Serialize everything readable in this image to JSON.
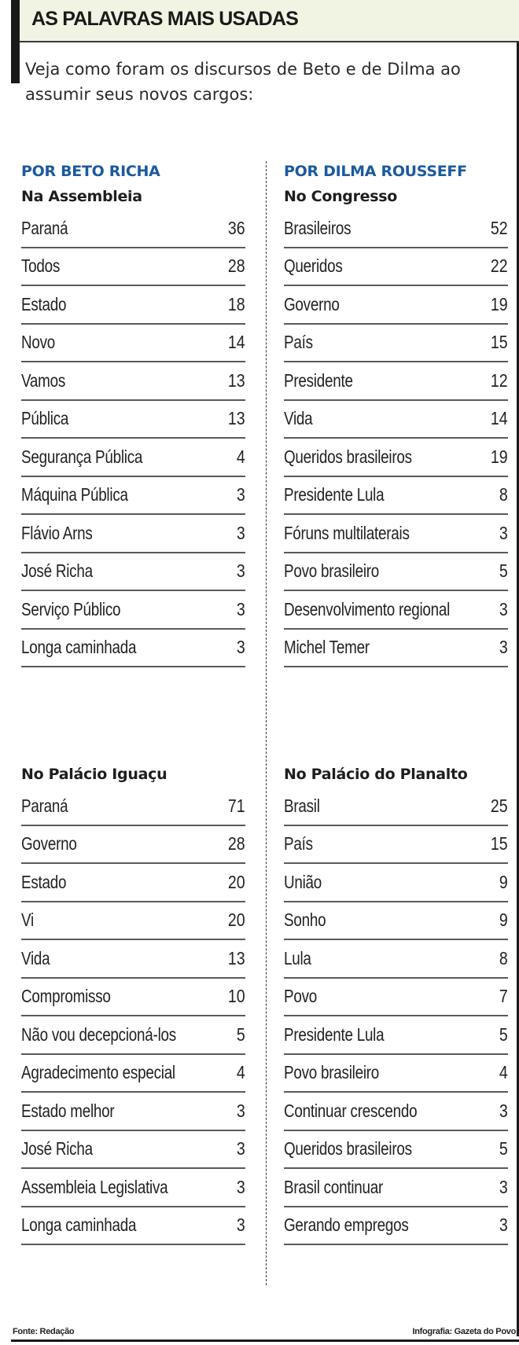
{
  "header": {
    "title": "AS PALAVRAS MAIS USADAS",
    "intro": "Veja como foram os discursos de Beto e de Dilma ao assumir seus novos cargos:"
  },
  "colors": {
    "person_heading": "#1b5a9e",
    "header_bg": "#f1f3e3",
    "text": "#1e1e1e"
  },
  "left": {
    "person": "POR BETO RICHA",
    "sections": [
      {
        "venue": "Na Assembleia",
        "rows": [
          {
            "word": "Paraná",
            "count": "36"
          },
          {
            "word": "Todos",
            "count": "28"
          },
          {
            "word": "Estado",
            "count": "18"
          },
          {
            "word": "Novo",
            "count": "14"
          },
          {
            "word": "Vamos",
            "count": "13"
          },
          {
            "word": "Pública",
            "count": "13"
          },
          {
            "word": "Segurança Pública",
            "count": "4"
          },
          {
            "word": "Máquina Pública",
            "count": "3"
          },
          {
            "word": "Flávio Arns",
            "count": "3"
          },
          {
            "word": "José Richa",
            "count": "3"
          },
          {
            "word": "Serviço Público",
            "count": "3"
          },
          {
            "word": "Longa caminhada",
            "count": "3"
          }
        ]
      },
      {
        "venue": "No Palácio Iguaçu",
        "rows": [
          {
            "word": "Paraná",
            "count": "71"
          },
          {
            "word": "Governo",
            "count": "28"
          },
          {
            "word": "Estado",
            "count": "20"
          },
          {
            "word": "Vi",
            "count": "20"
          },
          {
            "word": "Vida",
            "count": "13"
          },
          {
            "word": "Compromisso",
            "count": "10"
          },
          {
            "word": "Não vou decepcioná-los",
            "count": "5"
          },
          {
            "word": "Agradecimento especial",
            "count": "4"
          },
          {
            "word": "Estado melhor",
            "count": "3"
          },
          {
            "word": "José Richa",
            "count": "3"
          },
          {
            "word": "Assembleia Legislativa",
            "count": "3"
          },
          {
            "word": "Longa caminhada",
            "count": "3"
          }
        ]
      }
    ]
  },
  "right": {
    "person": "POR DILMA ROUSSEFF",
    "sections": [
      {
        "venue": "No Congresso",
        "rows": [
          {
            "word": "Brasileiros",
            "count": "52"
          },
          {
            "word": "Queridos",
            "count": "22"
          },
          {
            "word": "Governo",
            "count": "19"
          },
          {
            "word": "País",
            "count": "15"
          },
          {
            "word": "Presidente",
            "count": "12"
          },
          {
            "word": "Vida",
            "count": "14"
          },
          {
            "word": "Queridos brasileiros",
            "count": "19"
          },
          {
            "word": "Presidente Lula",
            "count": "8"
          },
          {
            "word": "Fóruns multilaterais",
            "count": "3"
          },
          {
            "word": "Povo brasileiro",
            "count": "5"
          },
          {
            "word": "Desenvolvimento regional",
            "count": "3"
          },
          {
            "word": "Michel Temer",
            "count": "3"
          }
        ]
      },
      {
        "venue": "No Palácio do Planalto",
        "rows": [
          {
            "word": "Brasil",
            "count": "25"
          },
          {
            "word": "País",
            "count": "15"
          },
          {
            "word": "União",
            "count": "9"
          },
          {
            "word": "Sonho",
            "count": "9"
          },
          {
            "word": "Lula",
            "count": "8"
          },
          {
            "word": "Povo",
            "count": "7"
          },
          {
            "word": "Presidente Lula",
            "count": "5"
          },
          {
            "word": "Povo brasileiro",
            "count": "4"
          },
          {
            "word": "Continuar crescendo",
            "count": "3"
          },
          {
            "word": "Queridos brasileiros",
            "count": "5"
          },
          {
            "word": "Brasil continuar",
            "count": "3"
          },
          {
            "word": "Gerando empregos",
            "count": "3"
          }
        ]
      }
    ]
  },
  "footer": {
    "source": "Fonte: Redação",
    "credit": "Infografia: Gazeta do Povo"
  }
}
